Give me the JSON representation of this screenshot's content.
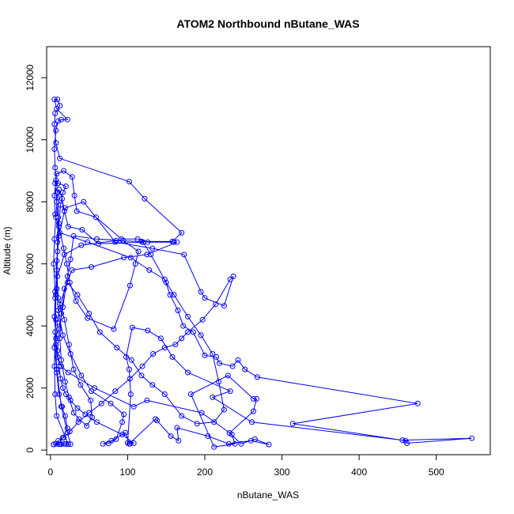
{
  "chart_data": {
    "type": "scatter",
    "title": "ATOM2 Northbound nButane_WAS",
    "xlabel": "nButane_WAS",
    "ylabel": "Altitude (m)",
    "xlim": [
      -5,
      570
    ],
    "ylim": [
      -150,
      13000
    ],
    "xticks": [
      0,
      100,
      200,
      300,
      400,
      500
    ],
    "yticks": [
      0,
      2000,
      4000,
      6000,
      8000,
      10000,
      12000
    ],
    "grid": false,
    "legend": "none",
    "color": "#0000ff",
    "marker": "open-circle",
    "connected": true,
    "series": [
      {
        "points": [
          [
            4,
            180
          ],
          [
            12,
            190
          ],
          [
            20,
            195
          ],
          [
            26,
            190
          ],
          [
            22,
            560
          ],
          [
            14,
            1400
          ],
          [
            8,
            2600
          ],
          [
            5,
            3300
          ],
          [
            7,
            4200
          ],
          [
            6,
            5100
          ],
          [
            4,
            6000
          ],
          [
            5,
            6800
          ],
          [
            7,
            7500
          ],
          [
            9,
            8300
          ],
          [
            6,
            9100
          ],
          [
            5,
            9700
          ],
          [
            7,
            10300
          ],
          [
            10,
            10600
          ],
          [
            14,
            10650
          ],
          [
            22,
            10650
          ],
          [
            8,
            11000
          ],
          [
            5,
            11300
          ],
          [
            9,
            11300
          ],
          [
            12,
            11100
          ],
          [
            6,
            10850
          ],
          [
            5,
            10500
          ],
          [
            7,
            9900
          ],
          [
            12,
            9400
          ],
          [
            102,
            8650
          ],
          [
            122,
            8100
          ],
          [
            170,
            7000
          ],
          [
            158,
            6720
          ],
          [
            118,
            6720
          ],
          [
            85,
            6750
          ],
          [
            40,
            6600
          ],
          [
            18,
            6300
          ],
          [
            9,
            5600
          ],
          [
            6,
            4900
          ],
          [
            5,
            4300
          ],
          [
            7,
            3600
          ],
          [
            9,
            3000
          ],
          [
            14,
            2700
          ],
          [
            23,
            2500
          ],
          [
            57,
            2000
          ],
          [
            108,
            1400
          ],
          [
            125,
            1600
          ],
          [
            196,
            1200
          ],
          [
            235,
            500
          ],
          [
            239,
            200
          ],
          [
            212,
            100
          ],
          [
            182,
            1800
          ],
          [
            230,
            2400
          ],
          [
            263,
            1650
          ],
          [
            267,
            1650
          ],
          [
            263,
            1250
          ],
          [
            232,
            550
          ],
          [
            247,
            200
          ],
          [
            265,
            350
          ],
          [
            283,
            180
          ],
          [
            260,
            300
          ],
          [
            231,
            200
          ],
          [
            204,
            450
          ],
          [
            164,
            720
          ],
          [
            166,
            300
          ],
          [
            156,
            450
          ],
          [
            138,
            950
          ],
          [
            136,
            1000
          ],
          [
            102,
            200
          ],
          [
            97,
            560
          ],
          [
            79,
            300
          ],
          [
            68,
            200
          ],
          [
            75,
            210
          ],
          [
            85,
            350
          ],
          [
            93,
            900
          ],
          [
            95,
            1150
          ],
          [
            78,
            1500
          ],
          [
            53,
            1900
          ],
          [
            40,
            2400
          ],
          [
            26,
            3100
          ],
          [
            16,
            3700
          ],
          [
            10,
            4500
          ],
          [
            8,
            5200
          ],
          [
            9,
            6400
          ],
          [
            11,
            7300
          ],
          [
            13,
            7900
          ],
          [
            16,
            8300
          ],
          [
            20,
            8500
          ],
          [
            10,
            8600
          ],
          [
            7,
            8700
          ],
          [
            5,
            8200
          ],
          [
            6,
            7600
          ],
          [
            12,
            7000
          ],
          [
            48,
            6700
          ],
          [
            104,
            6200
          ],
          [
            128,
            5800
          ],
          [
            148,
            5500
          ],
          [
            155,
            5000
          ],
          [
            165,
            4500
          ],
          [
            172,
            4000
          ],
          [
            185,
            3800
          ],
          [
            200,
            3050
          ],
          [
            215,
            3000
          ],
          [
            219,
            2800
          ],
          [
            236,
            2700
          ],
          [
            243,
            2900
          ],
          [
            252,
            2600
          ],
          [
            268,
            2350
          ],
          [
            476,
            1500
          ],
          [
            314,
            850
          ],
          [
            460,
            300
          ],
          [
            462,
            220
          ],
          [
            546,
            380
          ],
          [
            456,
            320
          ],
          [
            261,
            900
          ],
          [
            210,
            1700
          ],
          [
            233,
            1900
          ],
          [
            178,
            2500
          ],
          [
            158,
            3000
          ],
          [
            143,
            3600
          ],
          [
            126,
            3850
          ],
          [
            106,
            3950
          ],
          [
            98,
            3000
          ],
          [
            102,
            2600
          ],
          [
            104,
            1800
          ],
          [
            100,
            230
          ],
          [
            103,
            200
          ],
          [
            108,
            220
          ],
          [
            93,
            500
          ],
          [
            60,
            900
          ],
          [
            45,
            1150
          ],
          [
            35,
            1350
          ],
          [
            26,
            1600
          ],
          [
            20,
            1800
          ],
          [
            16,
            2000
          ],
          [
            13,
            2300
          ],
          [
            11,
            2700
          ],
          [
            9,
            3200
          ],
          [
            11,
            3900
          ],
          [
            16,
            4600
          ],
          [
            22,
            5600
          ],
          [
            26,
            6150
          ],
          [
            30,
            6900
          ],
          [
            60,
            6800
          ],
          [
            94,
            6750
          ],
          [
            114,
            6400
          ],
          [
            110,
            6000
          ],
          [
            103,
            5300
          ],
          [
            82,
            3900
          ],
          [
            48,
            4250
          ],
          [
            33,
            4800
          ],
          [
            25,
            5400
          ],
          [
            21,
            6000
          ],
          [
            17,
            6500
          ],
          [
            11,
            7200
          ],
          [
            8,
            8000
          ],
          [
            6,
            8600
          ],
          [
            8,
            8900
          ],
          [
            17,
            9000
          ],
          [
            28,
            8800
          ],
          [
            31,
            8200
          ],
          [
            34,
            7700
          ],
          [
            59,
            7500
          ],
          [
            92,
            6800
          ],
          [
            113,
            6800
          ],
          [
            126,
            6700
          ],
          [
            160,
            6700
          ],
          [
            164,
            6700
          ],
          [
            125,
            6300
          ],
          [
            95,
            6200
          ],
          [
            53,
            5900
          ],
          [
            28,
            5800
          ],
          [
            18,
            5200
          ],
          [
            14,
            4400
          ],
          [
            12,
            3600
          ],
          [
            14,
            2900
          ],
          [
            19,
            2200
          ],
          [
            24,
            1700
          ],
          [
            30,
            1200
          ],
          [
            37,
            1000
          ],
          [
            47,
            780
          ],
          [
            54,
            1050
          ],
          [
            52,
            1600
          ],
          [
            39,
            2100
          ],
          [
            30,
            2600
          ],
          [
            24,
            3400
          ],
          [
            18,
            4200
          ],
          [
            10,
            4900
          ],
          [
            8,
            5800
          ],
          [
            9,
            6700
          ],
          [
            10,
            7500
          ],
          [
            11,
            8400
          ],
          [
            15,
            8100
          ],
          [
            18,
            7700
          ],
          [
            23,
            7200
          ],
          [
            41,
            7100
          ],
          [
            62,
            6650
          ],
          [
            120,
            6700
          ],
          [
            130,
            6300
          ],
          [
            150,
            5400
          ],
          [
            160,
            5000
          ],
          [
            178,
            4300
          ],
          [
            195,
            3700
          ],
          [
            210,
            3100
          ],
          [
            218,
            2200
          ],
          [
            225,
            1300
          ],
          [
            212,
            900
          ],
          [
            190,
            850
          ],
          [
            170,
            1100
          ],
          [
            148,
            1800
          ],
          [
            132,
            2100
          ],
          [
            118,
            2400
          ],
          [
            105,
            2900
          ],
          [
            86,
            3300
          ],
          [
            64,
            3800
          ],
          [
            50,
            4400
          ],
          [
            35,
            5000
          ],
          [
            22,
            5400
          ],
          [
            12,
            4700
          ],
          [
            9,
            4100
          ],
          [
            7,
            3400
          ],
          [
            8,
            2500
          ],
          [
            11,
            1800
          ],
          [
            15,
            1400
          ],
          [
            19,
            1100
          ],
          [
            22,
            700
          ],
          [
            16,
            400
          ],
          [
            11,
            190
          ],
          [
            14,
            190
          ],
          [
            18,
            200
          ],
          [
            23,
            190
          ],
          [
            8,
            1100
          ],
          [
            6,
            1800
          ],
          [
            5,
            2700
          ],
          [
            6,
            3800
          ],
          [
            7,
            5000
          ],
          [
            8,
            6100
          ],
          [
            11,
            6900
          ],
          [
            19,
            7800
          ],
          [
            43,
            8000
          ],
          [
            84,
            6700
          ],
          [
            132,
            6500
          ],
          [
            173,
            6300
          ],
          [
            195,
            5100
          ],
          [
            200,
            4900
          ],
          [
            225,
            4650
          ],
          [
            237,
            5600
          ],
          [
            233,
            5500
          ],
          [
            214,
            4700
          ],
          [
            197,
            4200
          ],
          [
            178,
            3800
          ],
          [
            170,
            3600
          ],
          [
            162,
            3400
          ],
          [
            148,
            3300
          ],
          [
            133,
            3100
          ],
          [
            119,
            2700
          ],
          [
            103,
            2300
          ],
          [
            84,
            1900
          ],
          [
            66,
            1500
          ],
          [
            50,
            1200
          ],
          [
            36,
            900
          ],
          [
            25,
            600
          ],
          [
            17,
            400
          ],
          [
            10,
            300
          ],
          [
            7,
            200
          ],
          [
            4,
            180
          ]
        ]
      }
    ]
  }
}
